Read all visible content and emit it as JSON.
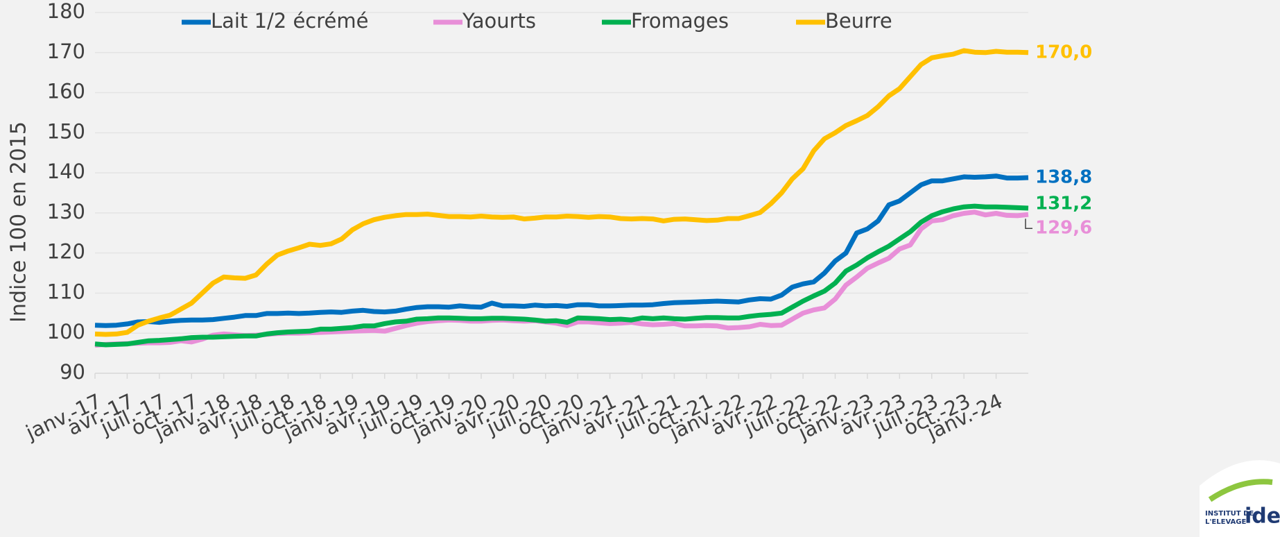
{
  "chart_data": {
    "type": "line",
    "y_label": "Indice 100 en 2015",
    "logo": {
      "line1": "INSTITUT DE",
      "line2": "L'ELEVAGE",
      "brand": "idele"
    },
    "categories": [
      "janv.-17",
      null,
      null,
      "avr.-17",
      null,
      null,
      "juil.-17",
      null,
      null,
      "oct.-17",
      null,
      null,
      "janv.-18",
      null,
      null,
      "avr.-18",
      null,
      null,
      "juil.-18",
      null,
      null,
      "oct.-18",
      null,
      null,
      "janv.-19",
      null,
      null,
      "avr.-19",
      null,
      null,
      "juil.-19",
      null,
      null,
      "oct.-19",
      null,
      null,
      "janv.-20",
      null,
      null,
      "avr.-20",
      null,
      null,
      "juil.-20",
      null,
      null,
      "oct.-20",
      null,
      null,
      "janv.-21",
      null,
      null,
      "avr.-21",
      null,
      null,
      "juil.-21",
      null,
      null,
      "oct.-21",
      null,
      null,
      "janv.-22",
      null,
      null,
      "avr.-22",
      null,
      null,
      "juil.-22",
      null,
      null,
      "oct.-22",
      null,
      null,
      "janv.-23",
      null,
      null,
      "avr.-23",
      null,
      null,
      "juil.-23",
      null,
      null,
      "oct.-23",
      null,
      null,
      "janv.-24",
      null,
      null,
      null
    ],
    "series": [
      {
        "name": "Lait 1/2 écrémé",
        "color": "#0070c0",
        "end_label": "138,8",
        "values": [
          102.0,
          101.9,
          102.0,
          102.3,
          102.8,
          102.9,
          102.7,
          103.0,
          103.2,
          103.3,
          103.3,
          103.4,
          103.7,
          104.0,
          104.4,
          104.4,
          104.9,
          104.9,
          105.0,
          104.9,
          105.0,
          105.2,
          105.3,
          105.2,
          105.5,
          105.7,
          105.4,
          105.3,
          105.5,
          106.0,
          106.4,
          106.6,
          106.6,
          106.5,
          106.8,
          106.6,
          106.5,
          107.5,
          106.8,
          106.8,
          106.7,
          107.0,
          106.8,
          106.9,
          106.7,
          107.1,
          107.1,
          106.8,
          106.8,
          106.9,
          107.0,
          107.0,
          107.1,
          107.4,
          107.6,
          107.7,
          107.8,
          107.9,
          108.0,
          107.9,
          107.8,
          108.3,
          108.6,
          108.5,
          109.5,
          111.5,
          112.3,
          112.8,
          115.0,
          118.0,
          120.0,
          125.0,
          126.0,
          128.0,
          132.0,
          133.0,
          135.0,
          137.0,
          138.0,
          138.0,
          138.5,
          139.0,
          138.9,
          139.0,
          139.2,
          138.7,
          138.7,
          138.8
        ]
      },
      {
        "name": "Yaourts",
        "color": "#e88fd8",
        "end_label": "129,6",
        "values": [
          97.0,
          97.2,
          97.3,
          97.4,
          97.5,
          97.6,
          97.6,
          97.7,
          98.1,
          97.8,
          98.5,
          99.5,
          99.8,
          99.6,
          99.4,
          99.5,
          99.7,
          99.9,
          100.0,
          100.0,
          100.1,
          100.2,
          100.3,
          100.4,
          100.5,
          100.6,
          100.7,
          100.5,
          101.2,
          101.9,
          102.5,
          102.9,
          103.1,
          103.3,
          103.2,
          103.0,
          103.0,
          103.2,
          103.3,
          103.1,
          103.0,
          103.1,
          102.8,
          102.5,
          101.9,
          102.8,
          102.8,
          102.6,
          102.4,
          102.5,
          102.7,
          102.3,
          102.1,
          102.2,
          102.4,
          101.8,
          101.8,
          101.9,
          101.8,
          101.3,
          101.4,
          101.6,
          102.2,
          101.9,
          102.0,
          103.5,
          105.0,
          105.8,
          106.3,
          108.5,
          112.0,
          114.0,
          116.2,
          117.5,
          118.7,
          121.0,
          122.0,
          126.0,
          128.0,
          128.3,
          129.3,
          129.9,
          130.2,
          129.5,
          129.9,
          129.4,
          129.3,
          129.6
        ]
      },
      {
        "name": "Fromages",
        "color": "#00b050",
        "end_label": "131,2",
        "values": [
          97.3,
          97.1,
          97.2,
          97.3,
          97.7,
          98.1,
          98.2,
          98.4,
          98.6,
          98.9,
          99.0,
          99.0,
          99.1,
          99.2,
          99.3,
          99.3,
          99.8,
          100.1,
          100.3,
          100.4,
          100.5,
          101.0,
          101.0,
          101.2,
          101.4,
          101.8,
          101.8,
          102.4,
          102.8,
          103.0,
          103.5,
          103.6,
          103.8,
          103.8,
          103.7,
          103.6,
          103.6,
          103.7,
          103.7,
          103.6,
          103.5,
          103.3,
          103.0,
          103.1,
          102.7,
          103.8,
          103.7,
          103.6,
          103.4,
          103.5,
          103.3,
          103.8,
          103.6,
          103.8,
          103.6,
          103.5,
          103.7,
          103.9,
          103.9,
          103.8,
          103.8,
          104.2,
          104.5,
          104.7,
          105.0,
          106.5,
          108.0,
          109.3,
          110.5,
          112.5,
          115.5,
          117.0,
          118.8,
          120.3,
          121.7,
          123.5,
          125.3,
          127.7,
          129.3,
          130.3,
          131.0,
          131.5,
          131.7,
          131.5,
          131.5,
          131.4,
          131.3,
          131.2
        ]
      },
      {
        "name": "Beurre",
        "color": "#ffc000",
        "end_label": "170,0",
        "values": [
          99.8,
          99.7,
          99.8,
          100.2,
          102.0,
          103.0,
          103.8,
          104.5,
          106.0,
          107.5,
          110.0,
          112.5,
          114.0,
          113.8,
          113.7,
          114.5,
          117.2,
          119.5,
          120.5,
          121.3,
          122.2,
          121.9,
          122.3,
          123.5,
          125.8,
          127.3,
          128.3,
          128.9,
          129.3,
          129.6,
          129.6,
          129.7,
          129.4,
          129.1,
          129.1,
          129.0,
          129.2,
          129.0,
          128.9,
          129.0,
          128.5,
          128.7,
          129.0,
          129.0,
          129.2,
          129.1,
          128.9,
          129.1,
          129.0,
          128.6,
          128.5,
          128.6,
          128.5,
          128.0,
          128.4,
          128.5,
          128.3,
          128.1,
          128.2,
          128.6,
          128.6,
          129.3,
          130.1,
          132.3,
          135.0,
          138.5,
          141.0,
          145.5,
          148.5,
          150.0,
          151.8,
          153.0,
          154.3,
          156.5,
          159.2,
          161.0,
          164.0,
          167.0,
          168.7,
          169.2,
          169.6,
          170.5,
          170.1,
          170.0,
          170.3,
          170.1,
          170.1,
          170.0
        ]
      }
    ],
    "ylim": [
      90,
      180
    ],
    "yticks": [
      90,
      100,
      110,
      120,
      130,
      140,
      150,
      160,
      170,
      180
    ],
    "grid": true,
    "legend": "top"
  }
}
